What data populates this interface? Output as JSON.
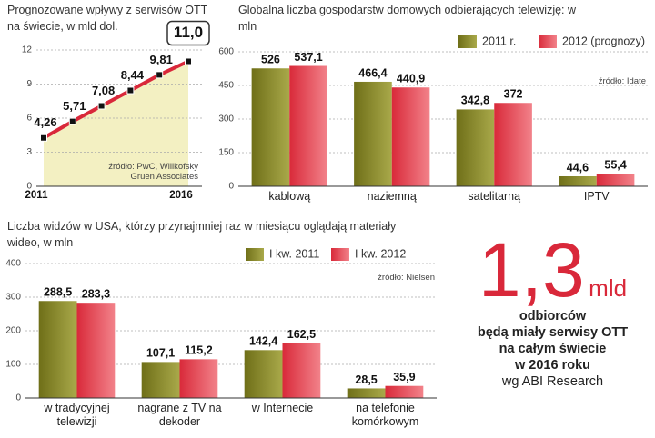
{
  "chart_data": [
    {
      "type": "line",
      "title": "Prognozowane wpływy z serwisów OTT na świecie, w mld dol.",
      "x": [
        2011,
        2012,
        2013,
        2014,
        2015,
        2016
      ],
      "values": [
        4.26,
        5.71,
        7.08,
        8.44,
        9.81,
        11.0
      ],
      "value_labels": [
        "4,26",
        "5,71",
        "7,08",
        "8,44",
        "9,81",
        "11,0"
      ],
      "color": "#d9283a",
      "area_color": "#f3f0c2",
      "xlim": [
        2011,
        2016
      ],
      "xticks": [
        2011,
        2016
      ],
      "ylim": [
        0,
        12
      ],
      "yticks": [
        0,
        3,
        6,
        9,
        12
      ],
      "grid": true,
      "source": "źródło: PwC, Willkofsky Gruen Associates"
    },
    {
      "type": "bar",
      "title": "Globalna liczba gospodarstw domowych odbierających telewizję: w mln",
      "categories": [
        "kablową",
        "naziemną",
        "satelitarną",
        "IPTV"
      ],
      "series": [
        {
          "name": "2011 r.",
          "color": "#8c8c2c",
          "values": [
            526,
            466.4,
            342.8,
            44.6
          ],
          "value_labels": [
            "526",
            "466,4",
            "342,8",
            "44,6"
          ]
        },
        {
          "name": "2012 (prognozy)",
          "color": "#e43a48",
          "values": [
            537.1,
            440.9,
            372,
            55.4
          ],
          "value_labels": [
            "537,1",
            "440,9",
            "372",
            "55,4"
          ]
        }
      ],
      "ylim": [
        0,
        600
      ],
      "yticks": [
        0,
        150,
        300,
        450,
        600
      ],
      "grid": true,
      "legend": "top-right",
      "source": "źródło: Idate"
    },
    {
      "type": "bar",
      "title": "Liczba widzów w USA, którzy przynajmniej raz w miesiącu oglądają materiały wideo, w mln",
      "categories": [
        "w tradycyjnej telewizji",
        "nagrane z TV na dekoder",
        "w Internecie",
        "na telefonie komórkowym"
      ],
      "series": [
        {
          "name": "I kw. 2011",
          "color": "#8c8c2c",
          "values": [
            288.5,
            107.1,
            142.4,
            28.5
          ],
          "value_labels": [
            "288,5",
            "107,1",
            "142,4",
            "28,5"
          ]
        },
        {
          "name": "I kw. 2012",
          "color": "#e43a48",
          "values": [
            283.3,
            115.2,
            162.5,
            35.9
          ],
          "value_labels": [
            "283,3",
            "115,2",
            "162,5",
            "35,9"
          ]
        }
      ],
      "ylim": [
        0,
        400
      ],
      "yticks": [
        0,
        100,
        200,
        300,
        400
      ],
      "grid": true,
      "legend": "top-right",
      "source": "źródło: Nielsen"
    }
  ],
  "callout": {
    "number": "1,3",
    "unit": "mld",
    "lines": [
      "odbiorców",
      "będą miały serwisy OTT",
      "na całym świecie",
      "w 2016 roku"
    ],
    "source": "wg ABI Research"
  }
}
